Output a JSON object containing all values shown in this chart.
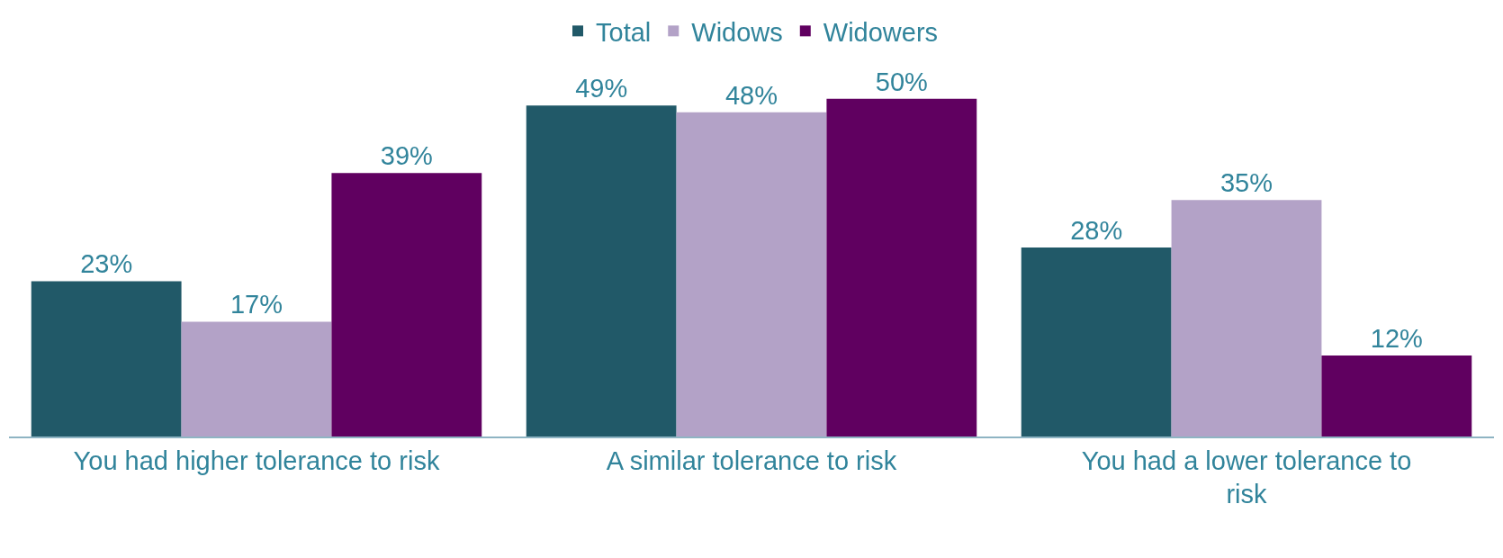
{
  "chart_data": {
    "type": "bar",
    "categories": [
      "You had higher tolerance to risk",
      "A similar tolerance to risk",
      "You had a lower tolerance to risk"
    ],
    "series": [
      {
        "name": "Total",
        "color": "#215968",
        "values": [
          23,
          49,
          28
        ],
        "value_labels": [
          "23%",
          "49%",
          "28%"
        ]
      },
      {
        "name": "Widows",
        "color": "#b3a2c7",
        "values": [
          17,
          48,
          35
        ],
        "value_labels": [
          "17%",
          "48%",
          "35%"
        ]
      },
      {
        "name": "Widowers",
        "color": "#600060",
        "values": [
          39,
          50,
          12
        ],
        "value_labels": [
          "39%",
          "50%",
          "12%"
        ]
      }
    ],
    "legend": "top",
    "tick_labels": "x"
  }
}
